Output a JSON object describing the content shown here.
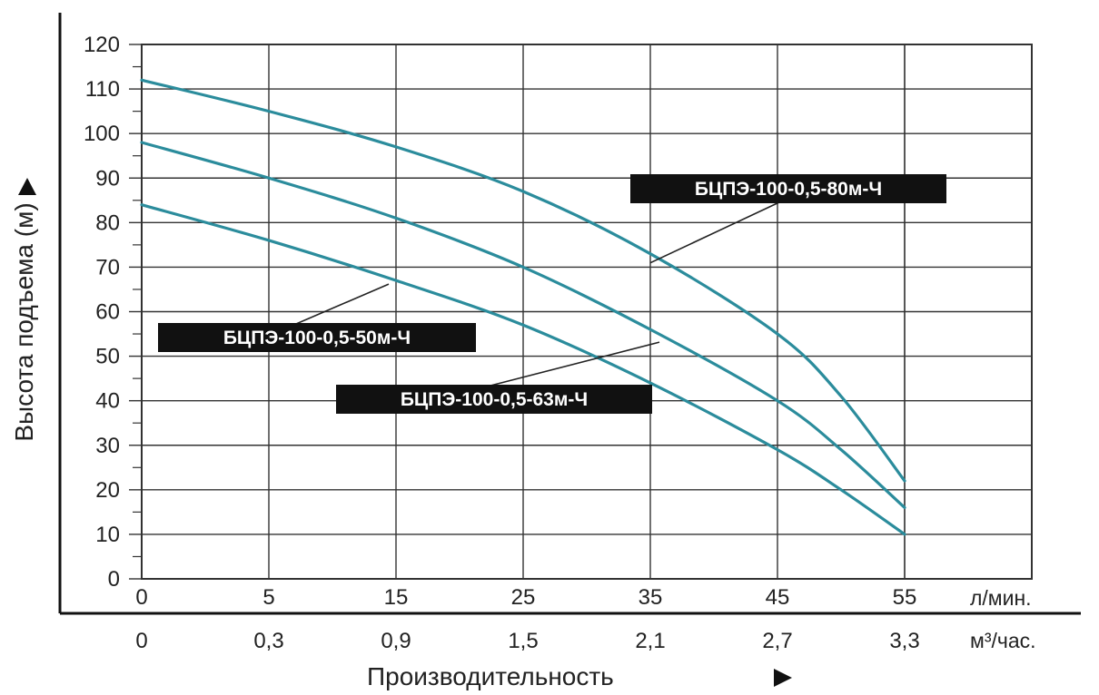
{
  "chart_data": {
    "type": "line",
    "title": "",
    "xlabel": "Производительность",
    "ylabel": "Высота подъема (м)",
    "x_unit_primary": "л/мин.",
    "x_unit_secondary": "м³/час.",
    "x_ticks_primary": [
      "0",
      "5",
      "15",
      "25",
      "35",
      "45",
      "55"
    ],
    "x_ticks_secondary": [
      "0",
      "0,3",
      "0,9",
      "1,5",
      "2,1",
      "2,7",
      "3,3"
    ],
    "y_ticks": [
      "0",
      "10",
      "20",
      "30",
      "40",
      "50",
      "60",
      "70",
      "80",
      "90",
      "100",
      "110",
      "120"
    ],
    "ylim": [
      0,
      120
    ],
    "grid": true,
    "line_color": "#2b8c9c",
    "series": [
      {
        "name": "БЦПЭ-100-0,5-80м-Ч",
        "x": [
          0,
          5,
          15,
          25,
          35,
          45,
          50,
          55
        ],
        "values": [
          112,
          105,
          97,
          87,
          73,
          55,
          41,
          22
        ]
      },
      {
        "name": "БЦПЭ-100-0,5-63м-Ч",
        "x": [
          0,
          5,
          15,
          25,
          35,
          45,
          50,
          55
        ],
        "values": [
          98,
          90,
          81,
          70,
          56,
          40,
          29,
          16
        ]
      },
      {
        "name": "БЦПЭ-100-0,5-50м-Ч",
        "x": [
          0,
          5,
          15,
          25,
          35,
          45,
          50,
          55
        ],
        "values": [
          84,
          76,
          67,
          57,
          44,
          29,
          20,
          10
        ]
      }
    ]
  }
}
